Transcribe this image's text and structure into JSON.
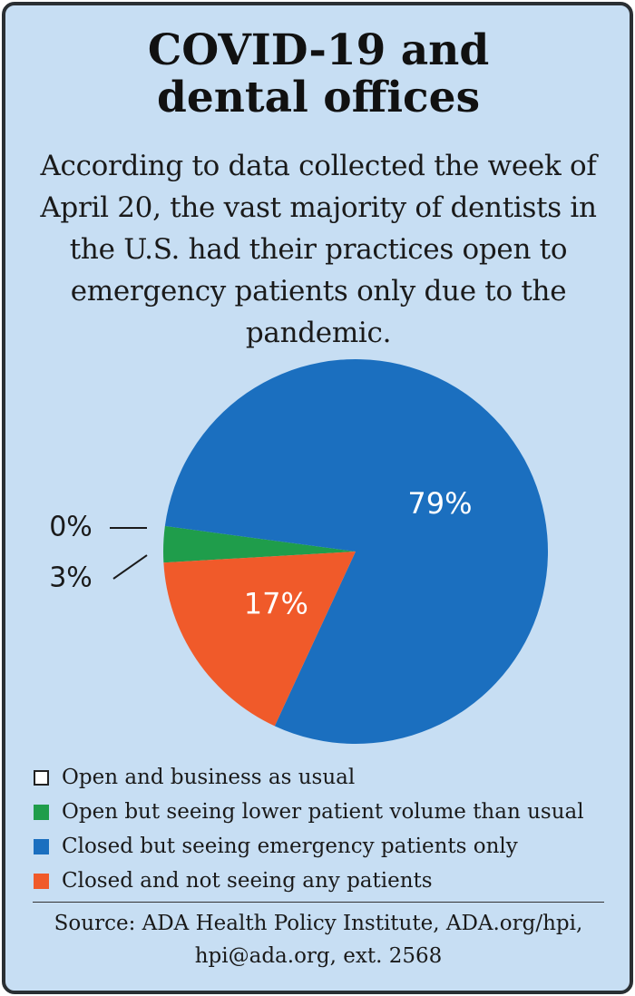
{
  "chart_data": {
    "type": "pie",
    "title": "COVID-19 and dental offices",
    "subtitle": "According to data collected the week of April 20, the vast majority of dentists in the U.S. had their practices open to emergency patients only due to the pandemic.",
    "categories": [
      "Open and business as usual",
      "Open but seeing lower patient volume than usual",
      "Closed but seeing emergency patients only",
      "Closed and not seeing any patients"
    ],
    "values": [
      0,
      3,
      79,
      17
    ],
    "value_labels": [
      "0%",
      "3%",
      "79%",
      "17%"
    ],
    "colors": [
      "#ffffff",
      "#1f9d4b",
      "#1b6fbf",
      "#f05a2a"
    ],
    "source": "Source: ADA Health Policy Institute, ADA.org/hpi, hpi@ada.org, ext. 2568"
  }
}
